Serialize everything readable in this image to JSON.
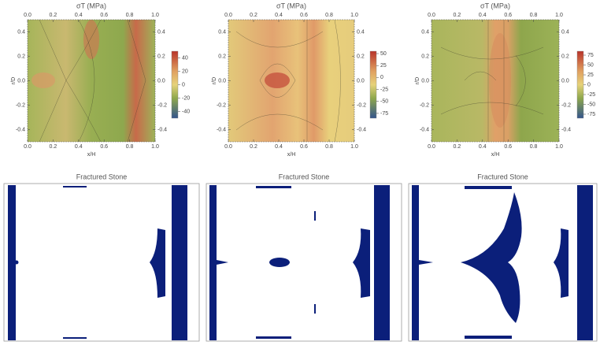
{
  "chart_data": [
    {
      "type": "contour",
      "title": "σT (MPa)",
      "x_label": "x/H",
      "y_label": "r/D",
      "xlim": [
        0,
        1
      ],
      "ylim": [
        -0.5,
        0.5
      ],
      "xticks": [
        {
          "value": 0,
          "label": "0.0"
        },
        0.2,
        0.4,
        0.6,
        0.8,
        {
          "value": 1,
          "label": "1.0"
        }
      ],
      "yticks": [
        -0.4,
        -0.2,
        {
          "value": 0,
          "label": "0.0"
        },
        0.2,
        0.4
      ],
      "colorbar_lim": [
        -50,
        50
      ],
      "colorbar_ticks": [
        -40,
        -20,
        0,
        20,
        40
      ]
    },
    {
      "type": "contour",
      "title": "σT (MPa)",
      "x_label": "x/H",
      "y_label": "r/D",
      "xlim": [
        0,
        1
      ],
      "ylim": [
        -0.5,
        0.5
      ],
      "xticks": [
        {
          "value": 0,
          "label": "0.0"
        },
        0.2,
        0.4,
        0.6,
        0.8,
        {
          "value": 1,
          "label": "1.0"
        }
      ],
      "yticks": [
        -0.4,
        -0.2,
        {
          "value": 0,
          "label": "0.0"
        },
        0.2,
        0.4
      ],
      "colorbar_lim": [
        -85,
        55
      ],
      "colorbar_ticks": [
        -75,
        -50,
        -25,
        0,
        25,
        50
      ]
    },
    {
      "type": "contour",
      "title": "σT (MPa)",
      "x_label": "x/H",
      "y_label": "r/D",
      "xlim": [
        0,
        1
      ],
      "ylim": [
        -0.5,
        0.5
      ],
      "xticks": [
        {
          "value": 0,
          "label": "0.0"
        },
        0.2,
        0.4,
        0.6,
        0.8,
        {
          "value": 1,
          "label": "1.0"
        }
      ],
      "yticks": [
        -0.4,
        -0.2,
        {
          "value": 0,
          "label": "0.0"
        },
        0.2,
        0.4
      ],
      "colorbar_lim": [
        -85,
        85
      ],
      "colorbar_ticks": [
        -75,
        -50,
        -25,
        0,
        25,
        50,
        75
      ]
    },
    {
      "type": "fracture",
      "title": "Fractured Stone"
    },
    {
      "type": "fracture",
      "title": "Fractured Stone"
    },
    {
      "type": "fracture",
      "title": "Fractured Stone"
    }
  ]
}
